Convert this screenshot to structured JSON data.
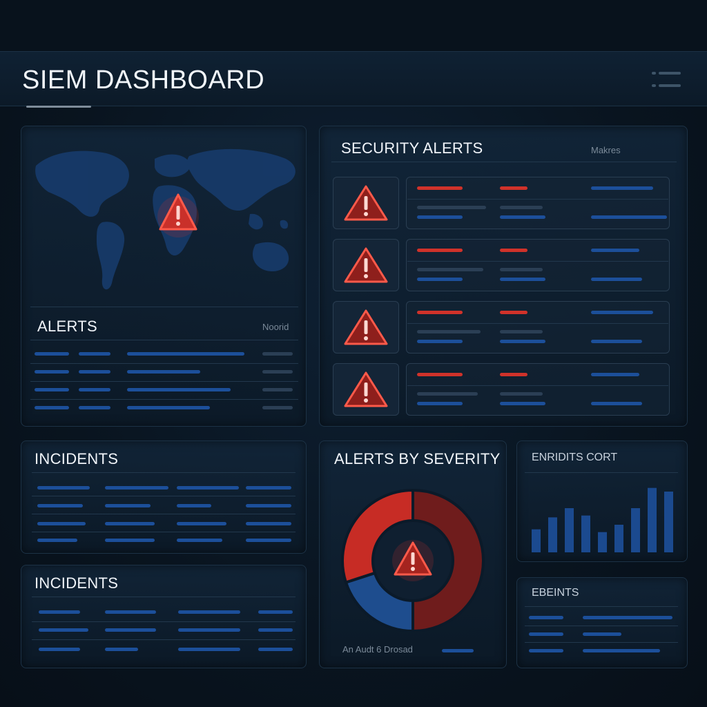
{
  "header": {
    "title": "SIEM DASHBOARD"
  },
  "map_panel": {
    "alerts_title": "ALERTS",
    "alerts_sub": "Noorid"
  },
  "security_alerts": {
    "title": "SECURITY ALERTS",
    "sub": "Makres",
    "count_rows": 4
  },
  "incidents_1": {
    "title": "INCIDENTS"
  },
  "incidents_2": {
    "title": "INCIDENTS"
  },
  "severity": {
    "title": "ALERTS BY SEVERITY",
    "footer": "An Audt 6 Drosad"
  },
  "enridits": {
    "title": "ENRIDITS CORT"
  },
  "ebeints": {
    "title": "EBEINTS"
  },
  "icons": {
    "alert": "warning-triangle-icon",
    "menu": "menu-icon"
  },
  "colors": {
    "accent_red": "#d0322a",
    "accent_blue": "#1c4f9a",
    "background": "#0a1723"
  },
  "chart_data": [
    {
      "type": "pie",
      "title": "ALERTS BY SEVERITY",
      "slices": [
        {
          "value": 50,
          "color": "#6f1c1c"
        },
        {
          "value": 20,
          "color": "#1e4d8e"
        },
        {
          "value": 30,
          "color": "#c72c25"
        }
      ]
    },
    {
      "type": "bar",
      "title": "ENRIDITS CORT",
      "values": [
        25,
        38,
        48,
        40,
        22,
        30,
        48,
        70,
        66
      ]
    }
  ]
}
